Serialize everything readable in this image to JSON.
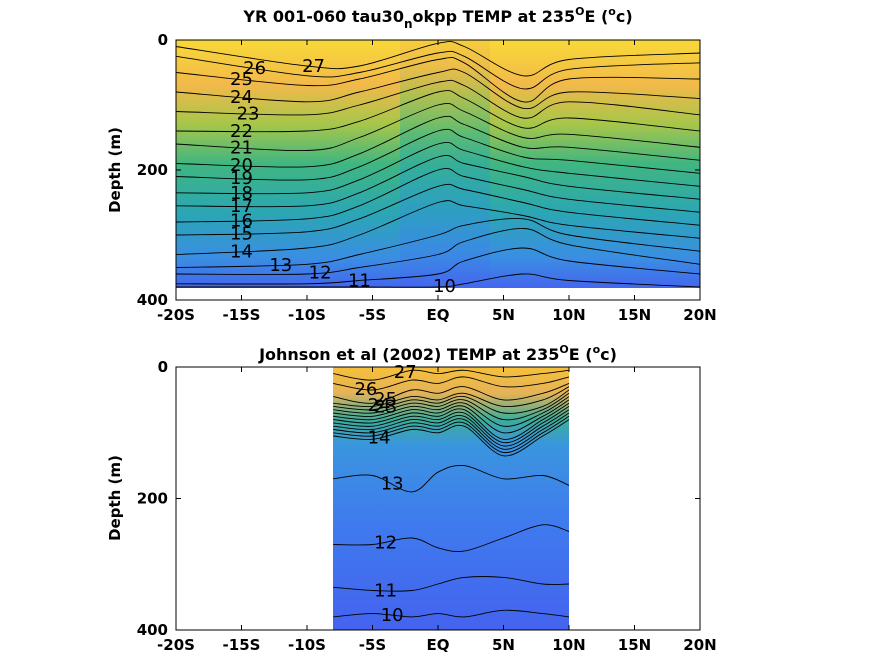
{
  "chart_data": [
    {
      "type": "contour",
      "title": "YR 001-060 tau30",
      "title_sub": "n",
      "title_rest": "okpp TEMP at 235",
      "title_sup1": "O",
      "title_mid": "E (",
      "title_sup2": "o",
      "title_end": "c)",
      "ylabel": "Depth (m)",
      "xlim": [
        -20,
        20
      ],
      "ylim": [
        0,
        400
      ],
      "y_reversed": true,
      "xticks": [
        "-20S",
        "-15S",
        "-10S",
        "-5S",
        "EQ",
        "5N",
        "10N",
        "15N",
        "20N"
      ],
      "yticks": [
        "0",
        "200",
        "400"
      ],
      "data_extent": {
        "x": [
          -20,
          20
        ],
        "y": [
          0,
          380
        ]
      },
      "contour_labels": [
        "27",
        "26",
        "25",
        "24",
        "23",
        "22",
        "21",
        "20",
        "19",
        "18",
        "17",
        "16",
        "15",
        "14",
        "13",
        "12",
        "11",
        "10"
      ],
      "isotherm_depths_m": {
        "x": [
          -20,
          -10,
          -6,
          0,
          2,
          6.5,
          10,
          20
        ],
        "levels": [
          27,
          26,
          25,
          24,
          23,
          22,
          21,
          20,
          19,
          18,
          17,
          16,
          15,
          14,
          13,
          12,
          11,
          10
        ],
        "depths": [
          [
            10,
            40,
            40,
            5,
            10,
            55,
            30,
            20
          ],
          [
            25,
            55,
            50,
            20,
            25,
            75,
            45,
            35
          ],
          [
            50,
            70,
            60,
            30,
            35,
            95,
            60,
            60
          ],
          [
            80,
            95,
            80,
            50,
            50,
            105,
            80,
            90
          ],
          [
            110,
            115,
            100,
            65,
            70,
            120,
            95,
            115
          ],
          [
            140,
            140,
            125,
            80,
            90,
            135,
            120,
            140
          ],
          [
            160,
            170,
            150,
            100,
            110,
            150,
            145,
            165
          ],
          [
            190,
            195,
            175,
            120,
            130,
            165,
            165,
            185
          ],
          [
            210,
            215,
            195,
            140,
            150,
            180,
            185,
            205
          ],
          [
            235,
            235,
            215,
            160,
            170,
            195,
            205,
            225
          ],
          [
            255,
            255,
            235,
            180,
            190,
            210,
            225,
            245
          ],
          [
            280,
            275,
            255,
            200,
            210,
            230,
            245,
            265
          ],
          [
            300,
            295,
            275,
            225,
            230,
            250,
            265,
            285
          ],
          [
            330,
            320,
            300,
            250,
            255,
            270,
            285,
            305
          ],
          [
            350,
            345,
            330,
            300,
            285,
            275,
            300,
            325
          ],
          [
            360,
            360,
            350,
            330,
            310,
            290,
            315,
            345
          ],
          [
            375,
            375,
            370,
            360,
            340,
            320,
            340,
            360
          ],
          [
            380,
            380,
            380,
            380,
            375,
            360,
            370,
            380
          ]
        ]
      }
    },
    {
      "type": "contour",
      "title": "Johnson et al (2002) TEMP at 235",
      "title_sup1": "O",
      "title_mid": "E (",
      "title_sup2": "o",
      "title_end": "c)",
      "ylabel": "Depth (m)",
      "xlim": [
        -20,
        20
      ],
      "ylim": [
        0,
        400
      ],
      "y_reversed": true,
      "xticks": [
        "-20S",
        "-15S",
        "-10S",
        "-5S",
        "EQ",
        "5N",
        "10N",
        "15N",
        "20N"
      ],
      "yticks": [
        "0",
        "200",
        "400"
      ],
      "data_extent": {
        "x": [
          -8,
          10
        ],
        "y": [
          0,
          400
        ]
      },
      "contour_labels": [
        "27",
        "26",
        "25",
        "24",
        "23",
        "14",
        "13",
        "12",
        "11",
        "10"
      ],
      "isotherm_depths_m": {
        "x": [
          -8,
          -5,
          -2,
          0,
          2,
          5,
          8,
          10
        ],
        "levels": [
          27,
          26,
          25,
          24,
          23,
          22,
          21,
          20,
          19,
          18,
          17,
          16,
          15,
          14,
          13,
          12,
          11,
          10
        ],
        "depths": [
          [
            10,
            20,
            5,
            10,
            5,
            15,
            10,
            5
          ],
          [
            25,
            35,
            20,
            25,
            15,
            30,
            25,
            15
          ],
          [
            45,
            55,
            35,
            40,
            30,
            50,
            40,
            25
          ],
          [
            55,
            60,
            45,
            50,
            40,
            60,
            50,
            30
          ],
          [
            60,
            65,
            50,
            55,
            45,
            70,
            60,
            35
          ],
          [
            65,
            70,
            55,
            60,
            50,
            80,
            65,
            40
          ],
          [
            70,
            75,
            60,
            65,
            55,
            90,
            70,
            45
          ],
          [
            75,
            80,
            65,
            70,
            60,
            100,
            75,
            50
          ],
          [
            80,
            85,
            70,
            75,
            65,
            110,
            80,
            55
          ],
          [
            85,
            90,
            75,
            80,
            70,
            115,
            85,
            60
          ],
          [
            90,
            95,
            80,
            85,
            75,
            120,
            90,
            65
          ],
          [
            95,
            100,
            85,
            90,
            80,
            125,
            95,
            70
          ],
          [
            100,
            105,
            90,
            95,
            85,
            130,
            100,
            75
          ],
          [
            105,
            110,
            95,
            100,
            90,
            135,
            105,
            80
          ],
          [
            170,
            165,
            190,
            160,
            150,
            170,
            165,
            180
          ],
          [
            270,
            270,
            260,
            275,
            280,
            260,
            240,
            250
          ],
          [
            335,
            340,
            340,
            330,
            320,
            320,
            330,
            330
          ],
          [
            380,
            375,
            380,
            375,
            380,
            370,
            375,
            380
          ]
        ]
      }
    }
  ]
}
